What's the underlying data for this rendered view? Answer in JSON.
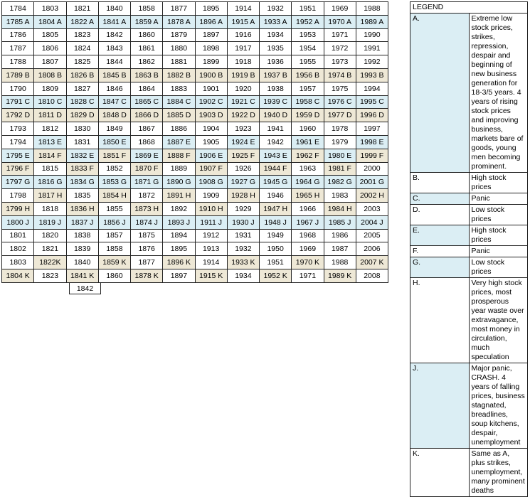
{
  "table": {
    "rows": [
      [
        "1784",
        "1803",
        "1821",
        "1840",
        "1858",
        "1877",
        "1895",
        "1914",
        "1932",
        "1951",
        "1969",
        "1988"
      ],
      [
        "1785 A",
        "1804 A",
        "1822 A",
        "1841 A",
        "1859 A",
        "1878 A",
        "1896 A",
        "1915 A",
        "1933 A",
        "1952 A",
        "1970 A",
        "1989 A"
      ],
      [
        "1786",
        "1805",
        "1823",
        "1842",
        "1860",
        "1879",
        "1897",
        "1916",
        "1934",
        "1953",
        "1971",
        "1990"
      ],
      [
        "1787",
        "1806",
        "1824",
        "1843",
        "1861",
        "1880",
        "1898",
        "1917",
        "1935",
        "1954",
        "1972",
        "1991"
      ],
      [
        "1788",
        "1807",
        "1825",
        "1844",
        "1862",
        "1881",
        "1899",
        "1918",
        "1936",
        "1955",
        "1973",
        "1992"
      ],
      [
        "1789 B",
        "1808 B",
        "1826 B",
        "1845 B",
        "1863 B",
        "1882 B",
        "1900 B",
        "1919 B",
        "1937 B",
        "1956 B",
        "1974 B",
        "1993 B"
      ],
      [
        "1790",
        "1809",
        "1827",
        "1846",
        "1864",
        "1883",
        "1901",
        "1920",
        "1938",
        "1957",
        "1975",
        "1994"
      ],
      [
        "1791 C",
        "1810 C",
        "1828 C",
        "1847 C",
        "1865 C",
        "1884 C",
        "1902 C",
        "1921 C",
        "1939 C",
        "1958 C",
        "1976 C",
        "1995 C"
      ],
      [
        "1792 D",
        "1811 D",
        "1829 D",
        "1848 D",
        "1866 D",
        "1885 D",
        "1903 D",
        "1922 D",
        "1940 D",
        "1959 D",
        "1977 D",
        "1996 D"
      ],
      [
        "1793",
        "1812",
        "1830",
        "1849",
        "1867",
        "1886",
        "1904",
        "1923",
        "1941",
        "1960",
        "1978",
        "1997"
      ],
      [
        "1794",
        "1813 E",
        "1831",
        "1850 E",
        "1868",
        "1887 E",
        "1905",
        "1924 E",
        "1942",
        "1961 E",
        "1979",
        "1998 E"
      ],
      [
        "1795 E",
        "1814 F",
        "1832 E",
        "1851 F",
        "1869 E",
        "1888 F",
        "1906 E",
        "1925 F",
        "1943 E",
        "1962 F",
        "1980 E",
        "1999 F"
      ],
      [
        "1796 F",
        "1815",
        "1833 F",
        "1852",
        "1870 F",
        "1889",
        "1907 F",
        "1926",
        "1944 F",
        "1963",
        "1981 F",
        "2000"
      ],
      [
        "1797 G",
        "1816 G",
        "1834 G",
        "1853 G",
        "1871 G",
        "1890 G",
        "1908 G",
        "1927 G",
        "1945 G",
        "1964 G",
        "1982 G",
        "2001 G"
      ],
      [
        "1798",
        "1817 H",
        "1835",
        "1854 H",
        "1872",
        "1891 H",
        "1909",
        "1928 H",
        "1946",
        "1965 H",
        "1983",
        "2002 H"
      ],
      [
        "1799 H",
        "1818",
        "1836 H",
        "1855",
        "1873 H",
        "1892",
        "1910 H",
        "1929",
        "1947 H",
        "1966",
        "1984 H",
        "2003"
      ],
      [
        "1800 J",
        "1819 J",
        "1837 J",
        "1856 J",
        "1874 J",
        "1893 J",
        "1911 J",
        "1930 J",
        "1948 J",
        "1967 J",
        "1985 J",
        "2004 J"
      ],
      [
        "1801",
        "1820",
        "1838",
        "1857",
        "1875",
        "1894",
        "1912",
        "1931",
        "1949",
        "1968",
        "1986",
        "2005"
      ],
      [
        "1802",
        "1821",
        "1839",
        "1858",
        "1876",
        "1895",
        "1913",
        "1932",
        "1950",
        "1969",
        "1987",
        "2006"
      ],
      [
        "1803",
        "1822K",
        "1840",
        "1859 K",
        "1877",
        "1896 K",
        "1914",
        "1933 K",
        "1951",
        "1970 K",
        "1988",
        "2007 K"
      ],
      [
        "1804 K",
        "1823",
        "1841 K",
        "1860",
        "1878 K",
        "1897",
        "1915 K",
        "1934",
        "1952 K",
        "1971",
        "1989 K",
        "2008"
      ]
    ],
    "extra": "1842"
  },
  "legend": {
    "title": "LEGEND",
    "rows": [
      {
        "letter": "A.",
        "text": "Extreme low stock prices, strikes, repression, despair and beginning of new business generation for 18-3/5 years.  4 years of rising stock prices and improving business, markets bare of goods, young men becoming prominent."
      },
      {
        "letter": "B.",
        "text": "High stock prices"
      },
      {
        "letter": "C.",
        "text": "Panic"
      },
      {
        "letter": "D.",
        "text": "Low stock prices"
      },
      {
        "letter": "E.",
        "text": "High stock prices"
      },
      {
        "letter": "F.",
        "text": "Panic"
      },
      {
        "letter": "G.",
        "text": "Low stock prices"
      },
      {
        "letter": "H.",
        "text": "Very high stock prices, most prosperous year waste over extravagance, most money in circulation, much speculation"
      },
      {
        "letter": "J.",
        "text": "Major panic, CRASH.  4 years of falling prices, business stagnated, breadlines, soup kitchens, despair, unemployment"
      },
      {
        "letter": "K.",
        "text": "Same as A, plus strikes, unemployment, many prominent deaths"
      }
    ]
  }
}
